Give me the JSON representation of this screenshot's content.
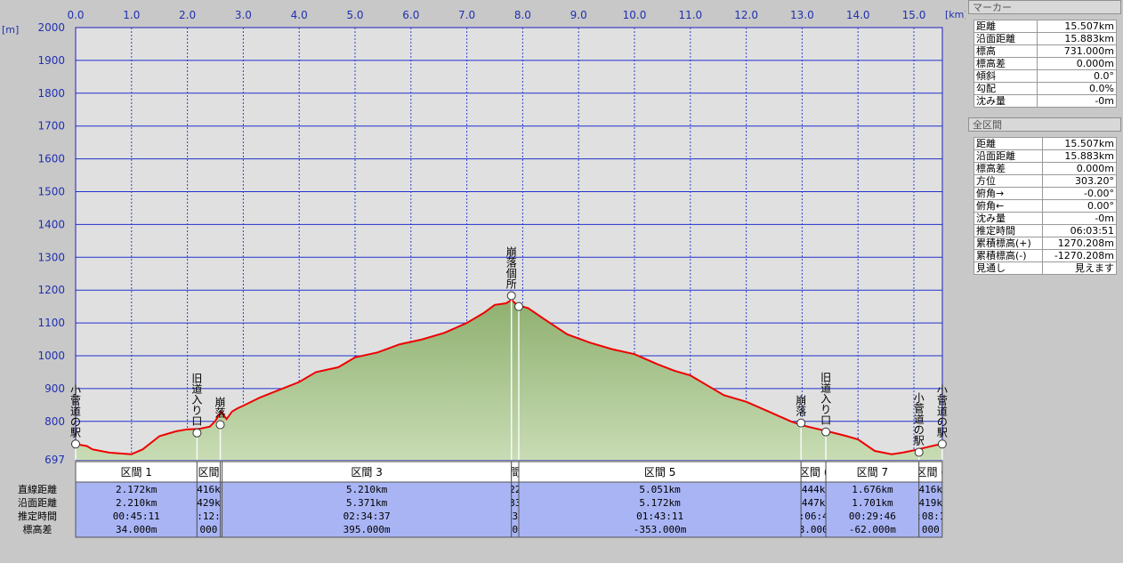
{
  "units": {
    "x": "[km]",
    "y": "[m]"
  },
  "chart_data": {
    "type": "area",
    "xlabel": "[km]",
    "ylabel": "[m]",
    "xlim": [
      0,
      15.507
    ],
    "ylim": [
      697,
      2000
    ],
    "x_ticks": [
      "0.0",
      "1.0",
      "2.0",
      "3.0",
      "4.0",
      "5.0",
      "6.0",
      "7.0",
      "8.0",
      "9.0",
      "10.0",
      "11.0",
      "12.0",
      "13.0",
      "14.0",
      "15.0"
    ],
    "y_ticks": [
      "2000",
      "1900",
      "1800",
      "1700",
      "1600",
      "1500",
      "1400",
      "1300",
      "1200",
      "1100",
      "1000",
      "900",
      "800",
      "697"
    ],
    "grid": true,
    "series": [
      {
        "color": "#ee0000",
        "x": [
          0,
          0.2,
          0.3,
          0.6,
          1.0,
          1.2,
          1.5,
          1.8,
          2.0,
          2.2,
          2.4,
          2.5,
          2.6,
          2.7,
          2.8,
          2.9,
          3.0,
          3.3,
          3.7,
          4.0,
          4.3,
          4.7,
          5.0,
          5.4,
          5.8,
          6.2,
          6.6,
          7.0,
          7.3,
          7.5,
          7.7,
          7.8,
          7.9,
          8.1,
          8.4,
          8.8,
          9.2,
          9.6,
          10.0,
          10.4,
          10.7,
          11.0,
          11.3,
          11.6,
          12.0,
          12.4,
          12.8,
          13.0,
          13.2,
          13.5,
          13.8,
          14.0,
          14.3,
          14.6,
          14.8,
          15.0,
          15.2,
          15.4,
          15.507
        ],
        "y": [
          731,
          725,
          715,
          705,
          700,
          715,
          755,
          770,
          776,
          777,
          784,
          801,
          830,
          807,
          830,
          840,
          848,
          873,
          900,
          920,
          950,
          965,
          995,
          1010,
          1035,
          1050,
          1070,
          1100,
          1130,
          1155,
          1160,
          1170,
          1155,
          1145,
          1110,
          1065,
          1040,
          1020,
          1005,
          975,
          955,
          940,
          910,
          880,
          860,
          830,
          800,
          788,
          780,
          768,
          755,
          745,
          710,
          700,
          705,
          712,
          720,
          728,
          731
        ]
      }
    ],
    "markers": [
      {
        "x": 0,
        "y": 731,
        "label": "小菅道の駅"
      },
      {
        "x": 2.172,
        "y": 765,
        "label": "旧道入り口"
      },
      {
        "x": 2.588,
        "y": 790,
        "label": "崩落"
      },
      {
        "x": 7.798,
        "y": 1183,
        "label": "崩落個所"
      },
      {
        "x": 7.93,
        "y": 1150,
        "label": ""
      },
      {
        "x": 12.981,
        "y": 795,
        "label": "崩落"
      },
      {
        "x": 13.425,
        "y": 768,
        "label": "旧道入り口"
      },
      {
        "x": 15.091,
        "y": 706,
        "label": "小菅道の駅"
      },
      {
        "x": 15.507,
        "y": 731,
        "label": "小菅道の駅"
      }
    ],
    "fill_top": "#8fb070",
    "fill_bottom": "#c8dcb4"
  },
  "sections": {
    "row_labels": [
      "直線距離",
      "沿面距離",
      "推定時間",
      "標高差"
    ],
    "items": [
      {
        "name": "区間 1",
        "x0": 0,
        "x1": 2.172,
        "rows": [
          "2.172km",
          "2.210km",
          "00:45:11",
          "34.000m"
        ]
      },
      {
        "name": "区間",
        "x0": 2.172,
        "x1": 2.588,
        "rows": [
          "416k",
          "429k",
          ":12:",
          "000"
        ]
      },
      {
        "name": "",
        "x0": 2.588,
        "x1": 2.62,
        "rows": [
          "",
          "",
          "",
          ""
        ]
      },
      {
        "name": "区間 3",
        "x0": 2.62,
        "x1": 7.798,
        "rows": [
          "5.210km",
          "5.371km",
          "02:34:37",
          "395.000m"
        ]
      },
      {
        "name": "間",
        "x0": 7.798,
        "x1": 7.93,
        "rows": [
          "22",
          "33",
          "3",
          "0"
        ]
      },
      {
        "name": "区間 5",
        "x0": 7.93,
        "x1": 12.981,
        "rows": [
          "5.051km",
          "5.172km",
          "01:43:11",
          "-353.000m"
        ]
      },
      {
        "name": "区間 (",
        "x0": 12.981,
        "x1": 13.425,
        "rows": [
          "444k",
          "447k",
          ":06:4",
          "8.000"
        ]
      },
      {
        "name": "区間 7",
        "x0": 13.425,
        "x1": 15.091,
        "rows": [
          "1.676km",
          "1.701km",
          "00:29:46",
          "-62.000m"
        ]
      },
      {
        "name": "区間 (",
        "x0": 15.091,
        "x1": 15.507,
        "rows": [
          "416k",
          "419k",
          ":08:1",
          "000"
        ]
      }
    ]
  },
  "marker_panel": {
    "title": "マーカー",
    "rows": [
      {
        "label": "距離",
        "value": "15.507km"
      },
      {
        "label": "沿面距離",
        "value": "15.883km"
      },
      {
        "label": "標高",
        "value": "731.000m"
      },
      {
        "label": "標高差",
        "value": "0.000m"
      },
      {
        "label": "傾斜",
        "value": "0.0°"
      },
      {
        "label": "勾配",
        "value": "0.0%"
      },
      {
        "label": "沈み量",
        "value": "-0m"
      }
    ]
  },
  "total_panel": {
    "title": "全区間",
    "rows": [
      {
        "label": "距離",
        "value": "15.507km"
      },
      {
        "label": "沿面距離",
        "value": "15.883km"
      },
      {
        "label": "標高差",
        "value": "0.000m"
      },
      {
        "label": "方位",
        "value": "303.20°"
      },
      {
        "label": "俯角→",
        "value": "-0.00°"
      },
      {
        "label": "俯角←",
        "value": "0.00°"
      },
      {
        "label": "沈み量",
        "value": "-0m"
      },
      {
        "label": "推定時間",
        "value": "06:03:51"
      },
      {
        "label": "累積標高(+)",
        "value": "1270.208m"
      },
      {
        "label": "累積標高(-)",
        "value": "-1270.208m"
      },
      {
        "label": "見通し",
        "value": "見えます"
      }
    ]
  }
}
